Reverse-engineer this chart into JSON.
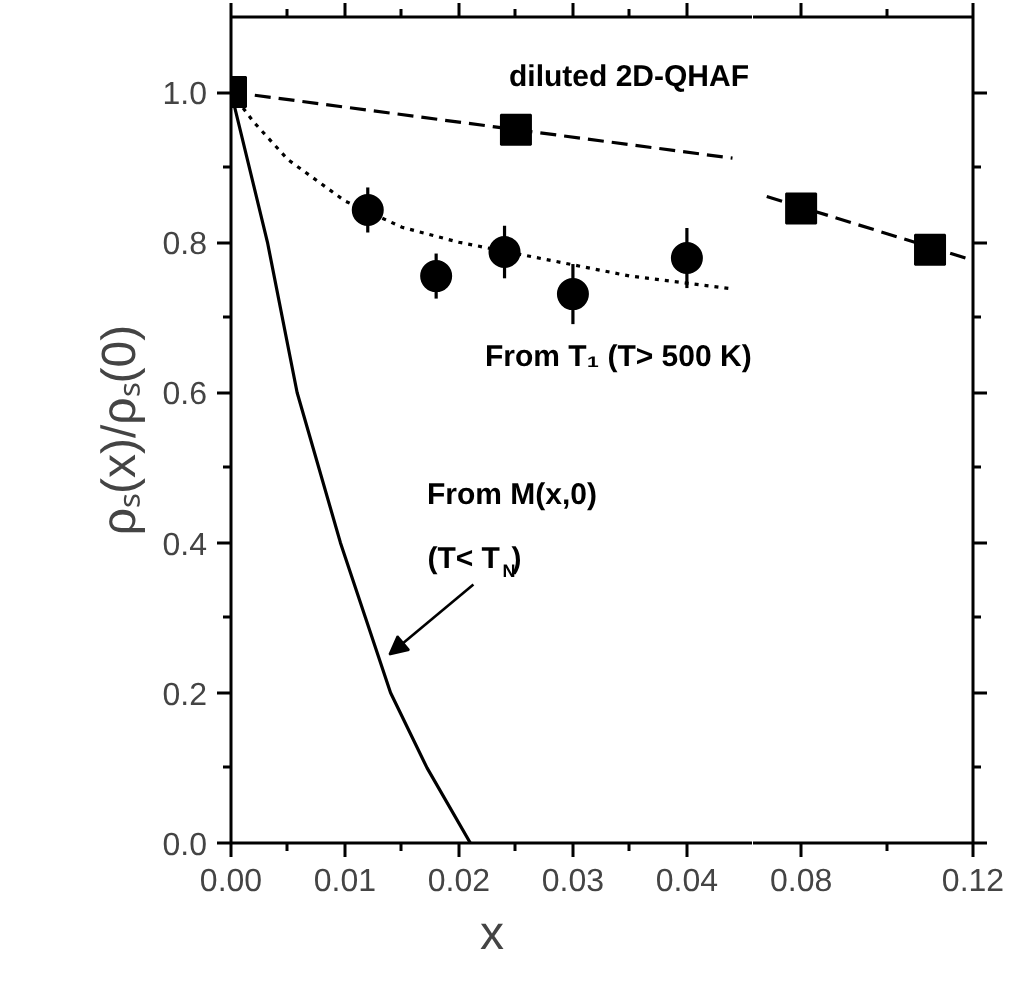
{
  "chart_data": [
    {
      "type": "scatter",
      "xlabel": "x",
      "ylabel": "ρₛ(x)/ρₛ(0)",
      "xlim": [
        0,
        0.0458
      ],
      "ylim": [
        0,
        1.1
      ],
      "xticks": [
        {
          "value": 0,
          "label": "0.00"
        },
        {
          "value": 0.01,
          "label": "0.01"
        },
        {
          "value": 0.02,
          "label": "0.02"
        },
        {
          "value": 0.03,
          "label": "0.03"
        },
        {
          "value": 0.04,
          "label": "0.04"
        }
      ],
      "yticks": [
        {
          "value": 0,
          "label": "0.0"
        },
        {
          "value": 0.2,
          "label": "0.2"
        },
        {
          "value": 0.4,
          "label": "0.4"
        },
        {
          "value": 0.6,
          "label": "0.6"
        },
        {
          "value": 0.8,
          "label": "0.8"
        },
        {
          "value": 1.0,
          "label": "1.0"
        }
      ],
      "series": [
        {
          "marker": "square",
          "color": "#000000",
          "x": [
            0,
            0.025
          ],
          "values": [
            1.0,
            0.95
          ]
        },
        {
          "marker": "circle",
          "color": "#000000",
          "x": [
            0.012,
            0.018,
            0.024,
            0.03,
            0.04
          ],
          "values": [
            0.843,
            0.755,
            0.787,
            0.731,
            0.779
          ],
          "errors": [
            0.03,
            0.03,
            0.035,
            0.04,
            0.04
          ]
        },
        {
          "type": "line",
          "line_style": "dashed",
          "color": "#000000",
          "x": [
            0,
            0.044
          ],
          "values": [
            1.0,
            0.912
          ]
        },
        {
          "type": "line",
          "line_style": "dotted",
          "color": "#000000",
          "x": [
            0,
            0.002,
            0.005,
            0.01,
            0.015,
            0.02,
            0.025,
            0.03,
            0.035,
            0.044
          ],
          "values": [
            1.0,
            0.96,
            0.91,
            0.855,
            0.82,
            0.8,
            0.785,
            0.77,
            0.755,
            0.738
          ]
        },
        {
          "type": "line",
          "line_style": "solid",
          "color": "#000000",
          "x": [
            0,
            0.0032,
            0.0058,
            0.0096,
            0.0118,
            0.014,
            0.0172,
            0.021
          ],
          "values": [
            1.0,
            0.8,
            0.6,
            0.4,
            0.3,
            0.2,
            0.1,
            0.0
          ]
        }
      ],
      "annotations": [
        "diluted 2D-QHAF",
        "From T₁ (T> 500 K)",
        "From M(x,0)",
        {
          "text": "(T< T$_{N}$)",
          "x": 0.0139,
          "y": 0.251
        }
      ]
    },
    {
      "type": "scatter",
      "tick_labels": "x",
      "xlim": [
        0.0688,
        0.12
      ],
      "ylim": [
        0,
        1.1
      ],
      "xticks": [
        {
          "value": 0.08,
          "label": "0.08"
        },
        {
          "value": 0.12,
          "label": "0.12"
        }
      ],
      "yticks": [
        {
          "value": 0,
          "label": null
        },
        {
          "value": 0.2,
          "label": null
        },
        {
          "value": 0.4,
          "label": null
        },
        {
          "value": 0.6,
          "label": null
        },
        {
          "value": 0.8,
          "label": null
        },
        {
          "value": 1.0,
          "label": null
        }
      ],
      "series": [
        {
          "marker": "square",
          "color": "#000000",
          "x": [
            0.08,
            0.11
          ],
          "values": [
            0.845,
            0.79
          ]
        },
        {
          "type": "line",
          "line_style": "dashed",
          "color": "#000000",
          "x": [
            0.072,
            0.12
          ],
          "values": [
            0.861,
            0.776
          ]
        }
      ]
    }
  ]
}
